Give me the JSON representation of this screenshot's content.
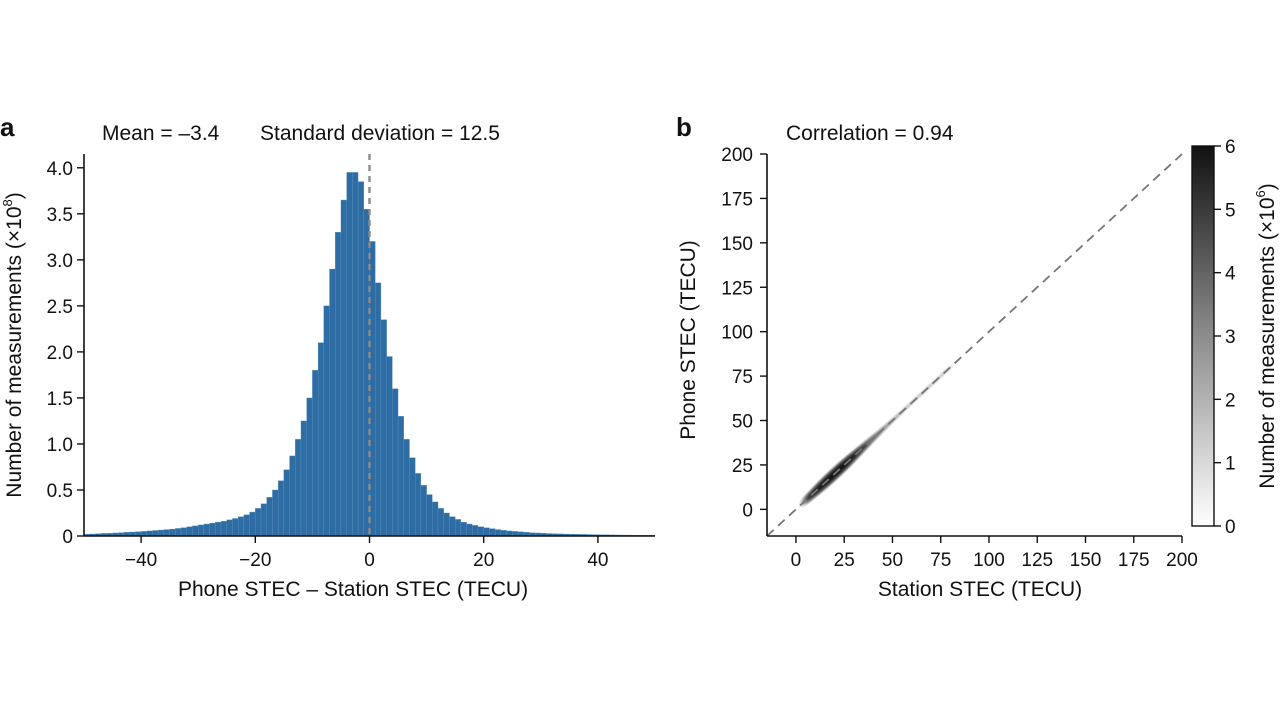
{
  "figure": {
    "panel_a_letter": "a",
    "panel_b_letter": "b"
  },
  "chart_data": [
    {
      "type": "bar",
      "panel": "a",
      "annotation_mean": "Mean = –3.4",
      "annotation_sd": "Standard deviation = 12.5",
      "xlabel": "Phone STEC – Station STEC (TECU)",
      "ylabel": "Number of measurements (×10",
      "ylabel_exponent": "8",
      "ylabel_close": ")",
      "xlim": [
        -50,
        50
      ],
      "ylim": [
        0,
        4.15
      ],
      "xticks": [
        -40,
        -20,
        0,
        20,
        40
      ],
      "xtick_labels": [
        "−40",
        "−20",
        "0",
        "20",
        "40"
      ],
      "yticks": [
        0,
        0.5,
        1.0,
        1.5,
        2.0,
        2.5,
        3.0,
        3.5,
        4.0
      ],
      "ytick_labels": [
        "0",
        "0.5",
        "1.0",
        "1.5",
        "2.0",
        "2.5",
        "3.0",
        "3.5",
        "4.0"
      ],
      "bin_start": -50,
      "bin_width": 1,
      "values": [
        0.02,
        0.022,
        0.025,
        0.028,
        0.03,
        0.033,
        0.036,
        0.04,
        0.043,
        0.047,
        0.05,
        0.055,
        0.06,
        0.065,
        0.07,
        0.075,
        0.082,
        0.09,
        0.1,
        0.11,
        0.12,
        0.13,
        0.14,
        0.15,
        0.16,
        0.175,
        0.19,
        0.21,
        0.23,
        0.26,
        0.3,
        0.35,
        0.42,
        0.5,
        0.6,
        0.72,
        0.87,
        1.05,
        1.25,
        1.5,
        1.8,
        2.1,
        2.5,
        2.9,
        3.3,
        3.65,
        3.95,
        3.95,
        3.85,
        3.55,
        3.2,
        2.75,
        2.35,
        1.95,
        1.6,
        1.3,
        1.05,
        0.85,
        0.68,
        0.55,
        0.45,
        0.37,
        0.3,
        0.25,
        0.21,
        0.18,
        0.15,
        0.13,
        0.115,
        0.1,
        0.09,
        0.08,
        0.07,
        0.062,
        0.055,
        0.05,
        0.045,
        0.04,
        0.036,
        0.033,
        0.03,
        0.027,
        0.025,
        0.023,
        0.021,
        0.02,
        0.018,
        0.017,
        0.016,
        0.015,
        0.014,
        0.013,
        0.012,
        0.011,
        0.01,
        0.01,
        0.009,
        0.009,
        0.008,
        0.008
      ],
      "reference_line_x": 0,
      "bar_color": "#2e6da4",
      "reference_line_color": "#8a8a8a"
    },
    {
      "type": "heatmap",
      "panel": "b",
      "annotation": "Correlation = 0.94",
      "xlabel": "Station STEC (TECU)",
      "ylabel": "Phone STEC (TECU)",
      "xlim": [
        -15,
        200
      ],
      "ylim": [
        -15,
        200
      ],
      "xticks": [
        0,
        25,
        50,
        75,
        100,
        125,
        150,
        175,
        200
      ],
      "xtick_labels": [
        "0",
        "25",
        "50",
        "75",
        "100",
        "125",
        "150",
        "175",
        "200"
      ],
      "yticks": [
        0,
        25,
        50,
        75,
        100,
        125,
        150,
        175,
        200
      ],
      "ytick_labels": [
        "0",
        "25",
        "50",
        "75",
        "100",
        "125",
        "150",
        "175",
        "200"
      ],
      "identity_line": true,
      "identity_line_color": "#777777",
      "density_ridge": {
        "x_range": [
          5,
          80
        ],
        "peak_x": 20,
        "note": "dense diagonal band along y = x, darkest near x 10–50"
      },
      "colorbar": {
        "label": "Number of measurements (×10",
        "label_exponent": "6",
        "label_close": ")",
        "range": [
          0,
          6
        ],
        "ticks": [
          0,
          1,
          2,
          3,
          4,
          5,
          6
        ],
        "tick_labels": [
          "0",
          "1",
          "2",
          "3",
          "4",
          "5",
          "6"
        ],
        "colormap": "greys"
      }
    }
  ]
}
